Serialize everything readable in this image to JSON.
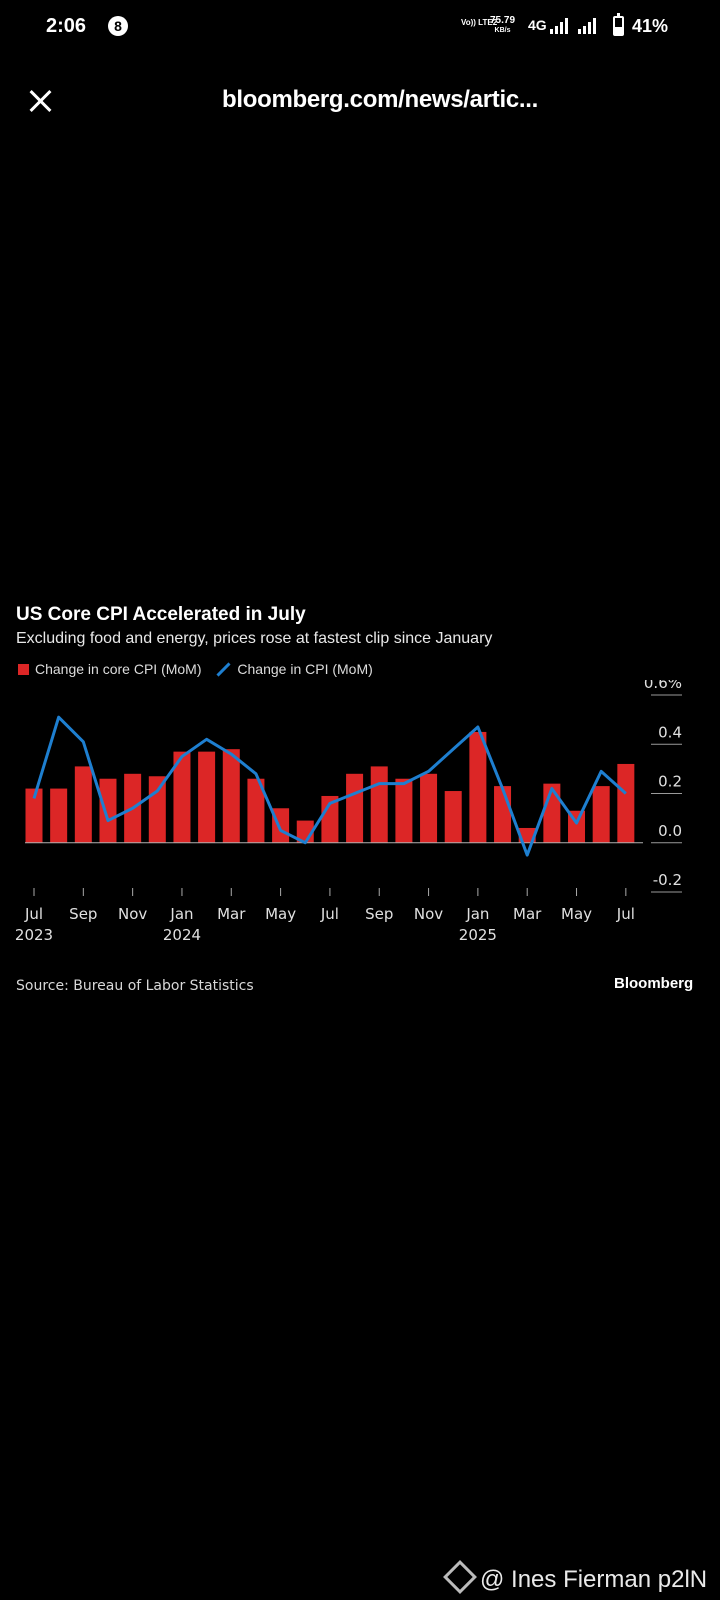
{
  "status_bar": {
    "time": "2:06",
    "notification_badge": "8",
    "volte": "Vo)) LTE2",
    "speed_value": "75.79",
    "speed_unit": "KB/s",
    "network": "4G",
    "battery": "41%",
    "battery_level": 0.41
  },
  "browser": {
    "url": "bloomberg.com/news/artic..."
  },
  "chart_data": {
    "type": "bar",
    "title": "US Core CPI Accelerated in July",
    "subtitle": "Excluding food and energy, prices rose at fastest clip since January",
    "legend": [
      "Change in core CPI (MoM)",
      "Change in CPI (MoM)"
    ],
    "categories": [
      "2023-07",
      "2023-08",
      "2023-09",
      "2023-10",
      "2023-11",
      "2023-12",
      "2024-01",
      "2024-02",
      "2024-03",
      "2024-04",
      "2024-05",
      "2024-06",
      "2024-07",
      "2024-08",
      "2024-09",
      "2024-10",
      "2024-11",
      "2024-12",
      "2025-01",
      "2025-02",
      "2025-03",
      "2025-04",
      "2025-05",
      "2025-06",
      "2025-07"
    ],
    "series": [
      {
        "name": "Change in core CPI (MoM)",
        "type": "bar",
        "color": "#dc2626",
        "values": [
          0.22,
          0.22,
          0.31,
          0.26,
          0.28,
          0.27,
          0.37,
          0.37,
          0.38,
          0.26,
          0.14,
          0.09,
          0.19,
          0.28,
          0.31,
          0.26,
          0.28,
          0.21,
          0.45,
          0.23,
          0.06,
          0.24,
          0.13,
          0.23,
          0.32
        ]
      },
      {
        "name": "Change in CPI (MoM)",
        "type": "line",
        "color": "#1e7fd0",
        "values": [
          0.18,
          0.51,
          0.41,
          0.09,
          0.14,
          0.21,
          0.35,
          0.42,
          0.36,
          0.28,
          0.05,
          0.0,
          0.16,
          0.2,
          0.24,
          0.24,
          0.29,
          0.38,
          0.47,
          0.22,
          -0.05,
          0.22,
          0.08,
          0.29,
          0.2
        ]
      }
    ],
    "y_ticks": [
      "0.6%",
      "0.4",
      "0.2",
      "0.0",
      "-0.2"
    ],
    "y_tick_values": [
      0.6,
      0.4,
      0.2,
      0.0,
      -0.2
    ],
    "ylim": [
      -0.2,
      0.6
    ],
    "x_ticks": [
      {
        "index": 0,
        "month": "Jul",
        "year": "2023"
      },
      {
        "index": 2,
        "month": "Sep",
        "year": ""
      },
      {
        "index": 4,
        "month": "Nov",
        "year": ""
      },
      {
        "index": 6,
        "month": "Jan",
        "year": "2024"
      },
      {
        "index": 8,
        "month": "Mar",
        "year": ""
      },
      {
        "index": 10,
        "month": "May",
        "year": ""
      },
      {
        "index": 12,
        "month": "Jul",
        "year": ""
      },
      {
        "index": 14,
        "month": "Sep",
        "year": ""
      },
      {
        "index": 16,
        "month": "Nov",
        "year": ""
      },
      {
        "index": 18,
        "month": "Jan",
        "year": "2025"
      },
      {
        "index": 20,
        "month": "Mar",
        "year": ""
      },
      {
        "index": 22,
        "month": "May",
        "year": ""
      },
      {
        "index": 24,
        "month": "Jul",
        "year": ""
      }
    ],
    "source": "Source: Bureau of Labor Statistics",
    "brand": "Bloomberg",
    "grid": true,
    "legend_position": "top-left"
  },
  "watermark": "@ Ines Fierman p2lN"
}
